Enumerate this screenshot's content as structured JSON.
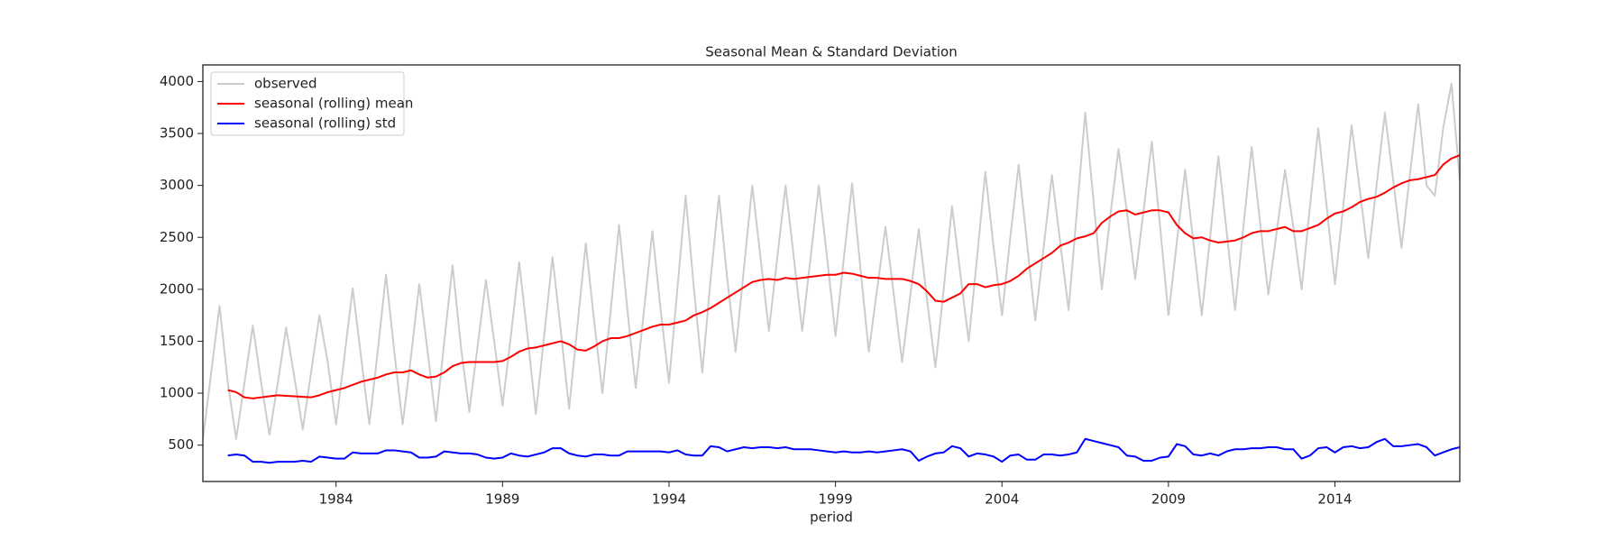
{
  "chart_data": {
    "type": "line",
    "title": "Seasonal Mean & Standard Deviation",
    "x_label": "period",
    "xlim": [
      1980,
      2017.75
    ],
    "xticks": [
      1984,
      1989,
      1994,
      1999,
      2004,
      2009,
      2014
    ],
    "ylim": [
      150,
      4160
    ],
    "yticks": [
      500,
      1000,
      1500,
      2000,
      2500,
      3000,
      3500,
      4000
    ],
    "legend": "upper left",
    "x": [
      1980,
      1980.25,
      1980.5,
      1980.75,
      1981,
      1981.25,
      1981.5,
      1981.75,
      1982,
      1982.25,
      1982.5,
      1982.75,
      1983,
      1983.25,
      1983.5,
      1983.75,
      1984,
      1984.25,
      1984.5,
      1984.75,
      1985,
      1985.25,
      1985.5,
      1985.75,
      1986,
      1986.25,
      1986.5,
      1986.75,
      1987,
      1987.25,
      1987.5,
      1987.75,
      1988,
      1988.25,
      1988.5,
      1988.75,
      1989,
      1989.25,
      1989.5,
      1989.75,
      1990,
      1990.25,
      1990.5,
      1990.75,
      1991,
      1991.25,
      1991.5,
      1991.75,
      1992,
      1992.25,
      1992.5,
      1992.75,
      1993,
      1993.25,
      1993.5,
      1993.75,
      1994,
      1994.25,
      1994.5,
      1994.75,
      1995,
      1995.25,
      1995.5,
      1995.75,
      1996,
      1996.25,
      1996.5,
      1996.75,
      1997,
      1997.25,
      1997.5,
      1997.75,
      1998,
      1998.25,
      1998.5,
      1998.75,
      1999,
      1999.25,
      1999.5,
      1999.75,
      2000,
      2000.25,
      2000.5,
      2000.75,
      2001,
      2001.25,
      2001.5,
      2001.75,
      2002,
      2002.25,
      2002.5,
      2002.75,
      2003,
      2003.25,
      2003.5,
      2003.75,
      2004,
      2004.25,
      2004.5,
      2004.75,
      2005,
      2005.25,
      2005.5,
      2005.75,
      2006,
      2006.25,
      2006.5,
      2006.75,
      2007,
      2007.25,
      2007.5,
      2007.75,
      2008,
      2008.25,
      2008.5,
      2008.75,
      2009,
      2009.25,
      2009.5,
      2009.75,
      2010,
      2010.25,
      2010.5,
      2010.75,
      2011,
      2011.25,
      2011.5,
      2011.75,
      2012,
      2012.25,
      2012.5,
      2012.75,
      2013,
      2013.25,
      2013.5,
      2013.75,
      2014,
      2014.25,
      2014.5,
      2014.75,
      2015,
      2015.25,
      2015.5,
      2015.75,
      2016,
      2016.25,
      2016.5,
      2016.75,
      2017,
      2017.25,
      2017.5,
      2017.75
    ],
    "series": [
      {
        "name": "observed",
        "color": "#cccccc",
        "values": [
          550,
          1200,
          1840,
          1100,
          560,
          1100,
          1650,
          1100,
          600,
          1100,
          1630,
          1150,
          650,
          1200,
          1750,
          1300,
          700,
          1350,
          2010,
          1350,
          700,
          1400,
          2140,
          1400,
          700,
          1350,
          2050,
          1400,
          730,
          1500,
          2230,
          1450,
          820,
          1450,
          2090,
          1500,
          880,
          1550,
          2260,
          1550,
          800,
          1550,
          2310,
          1600,
          850,
          1650,
          2440,
          1700,
          1000,
          1800,
          2620,
          1800,
          1050,
          1800,
          2560,
          1800,
          1100,
          2000,
          2900,
          2000,
          1200,
          2100,
          2900,
          2100,
          1400,
          2200,
          3000,
          2300,
          1600,
          2300,
          3000,
          2300,
          1600,
          2300,
          3000,
          2300,
          1550,
          2300,
          3020,
          2200,
          1400,
          2000,
          2600,
          1950,
          1300,
          1950,
          2580,
          1900,
          1250,
          2000,
          2800,
          2150,
          1500,
          2300,
          3130,
          2400,
          1750,
          2500,
          3200,
          2450,
          1700,
          2400,
          3100,
          2450,
          1800,
          2750,
          3700,
          2850,
          2000,
          2700,
          3350,
          2750,
          2100,
          2750,
          3420,
          2600,
          1750,
          2450,
          3150,
          2450,
          1750,
          2500,
          3280,
          2550,
          1800,
          2600,
          3370,
          2650,
          1950,
          2550,
          3150,
          2600,
          2000,
          2800,
          3550,
          2800,
          2050,
          2800,
          3580,
          2950,
          2300,
          3000,
          3700,
          3050,
          2400,
          3100,
          3780,
          3000,
          2900,
          3550,
          3980,
          3050
        ]
      },
      {
        "name": "seasonal (rolling) mean",
        "color": "#ff0000",
        "values": [
          null,
          null,
          null,
          1030,
          1010,
          960,
          950,
          960,
          970,
          980,
          975,
          970,
          965,
          960,
          980,
          1010,
          1030,
          1050,
          1080,
          1110,
          1130,
          1150,
          1180,
          1200,
          1200,
          1220,
          1180,
          1150,
          1160,
          1200,
          1260,
          1290,
          1300,
          1300,
          1300,
          1300,
          1310,
          1350,
          1400,
          1430,
          1440,
          1460,
          1480,
          1500,
          1470,
          1420,
          1410,
          1450,
          1500,
          1530,
          1530,
          1550,
          1580,
          1610,
          1640,
          1660,
          1660,
          1680,
          1700,
          1750,
          1780,
          1820,
          1870,
          1920,
          1970,
          2020,
          2070,
          2090,
          2100,
          2090,
          2110,
          2100,
          2110,
          2120,
          2130,
          2140,
          2140,
          2160,
          2150,
          2130,
          2110,
          2110,
          2100,
          2100,
          2100,
          2080,
          2050,
          1980,
          1890,
          1880,
          1920,
          1960,
          2050,
          2050,
          2020,
          2040,
          2050,
          2080,
          2130,
          2200,
          2250,
          2300,
          2350,
          2420,
          2450,
          2490,
          2510,
          2540,
          2640,
          2700,
          2750,
          2760,
          2720,
          2740,
          2760,
          2760,
          2740,
          2620,
          2540,
          2490,
          2500,
          2470,
          2450,
          2460,
          2470,
          2500,
          2540,
          2560,
          2560,
          2580,
          2600,
          2560,
          2560,
          2590,
          2620,
          2680,
          2730,
          2750,
          2790,
          2840,
          2870,
          2890,
          2930,
          2980,
          3020,
          3050,
          3060,
          3080,
          3100,
          3200,
          3260,
          3290
        ]
      },
      {
        "name": "seasonal (rolling) std",
        "color": "#0000ff",
        "values": [
          null,
          null,
          null,
          400,
          410,
          400,
          340,
          340,
          330,
          340,
          340,
          340,
          350,
          340,
          390,
          380,
          370,
          370,
          430,
          420,
          420,
          420,
          450,
          450,
          440,
          430,
          380,
          380,
          390,
          440,
          430,
          420,
          420,
          410,
          380,
          370,
          380,
          420,
          400,
          390,
          410,
          430,
          470,
          470,
          420,
          400,
          390,
          410,
          410,
          400,
          400,
          440,
          440,
          440,
          440,
          440,
          430,
          450,
          410,
          400,
          400,
          490,
          480,
          440,
          460,
          480,
          470,
          480,
          480,
          470,
          480,
          460,
          460,
          460,
          450,
          440,
          430,
          440,
          430,
          430,
          440,
          430,
          440,
          450,
          460,
          440,
          350,
          390,
          420,
          430,
          490,
          470,
          390,
          420,
          410,
          390,
          340,
          400,
          410,
          360,
          360,
          410,
          410,
          400,
          410,
          430,
          560,
          540,
          520,
          500,
          480,
          400,
          390,
          350,
          350,
          380,
          390,
          510,
          490,
          410,
          400,
          420,
          400,
          440,
          460,
          460,
          470,
          470,
          480,
          480,
          460,
          460,
          370,
          400,
          470,
          480,
          430,
          480,
          490,
          470,
          480,
          530,
          560,
          490,
          490,
          500,
          510,
          480,
          400,
          430,
          460,
          480
        ]
      }
    ]
  }
}
